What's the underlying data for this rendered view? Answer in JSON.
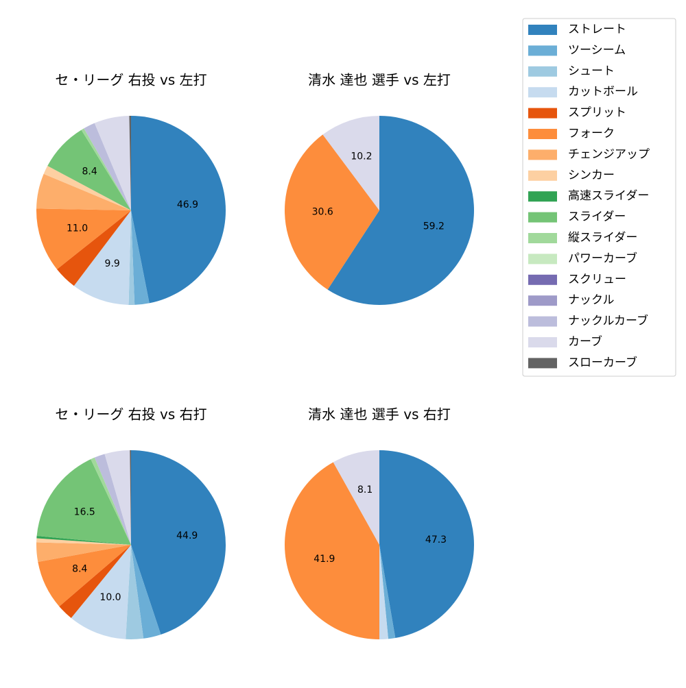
{
  "legend": {
    "labels": [
      "ストレート",
      "ツーシーム",
      "シュート",
      "カットボール",
      "スプリット",
      "フォーク",
      "チェンジアップ",
      "シンカー",
      "高速スライダー",
      "スライダー",
      "縦スライダー",
      "パワーカーブ",
      "スクリュー",
      "ナックル",
      "ナックルカーブ",
      "カーブ",
      "スローカーブ"
    ],
    "colors": [
      "#3182bd",
      "#6baed6",
      "#9ecae1",
      "#c6dbef",
      "#e6550d",
      "#fd8d3c",
      "#fdae6b",
      "#fdd0a2",
      "#31a354",
      "#74c476",
      "#a1d99b",
      "#c7e9c0",
      "#756bb1",
      "#9e9ac8",
      "#bcbddc",
      "#dadaeb",
      "#636363"
    ]
  },
  "chart_data": [
    {
      "type": "pie",
      "title": "セ・リーグ 右投 vs 左打",
      "values": [
        46.9,
        2.5,
        1.0,
        9.9,
        4.0,
        11.0,
        6.0,
        1.5,
        0,
        8.4,
        0.5,
        0,
        0,
        0,
        2.0,
        6.0,
        0.3
      ],
      "value_labels": [
        "46.9",
        null,
        null,
        "9.9",
        null,
        "11.0",
        null,
        null,
        null,
        "8.4",
        null,
        null,
        null,
        null,
        null,
        null,
        null
      ]
    },
    {
      "type": "pie",
      "title": "清水 達也 選手 vs 左打",
      "values": [
        59.2,
        0,
        0,
        0,
        0,
        30.6,
        0,
        0,
        0,
        0,
        0,
        0,
        0,
        0,
        0,
        10.2,
        0
      ],
      "value_labels": [
        "59.2",
        null,
        null,
        null,
        null,
        "30.6",
        null,
        null,
        null,
        null,
        null,
        null,
        null,
        null,
        null,
        "10.2",
        null
      ]
    },
    {
      "type": "pie",
      "title": "セ・リーグ 右投 vs 右打",
      "values": [
        44.9,
        3.0,
        3.0,
        10.0,
        2.8,
        8.4,
        3.3,
        0.7,
        0.4,
        16.5,
        0.7,
        0,
        0,
        0,
        1.8,
        4.3,
        0.2
      ],
      "value_labels": [
        "44.9",
        null,
        null,
        "10.0",
        null,
        "8.4",
        null,
        null,
        null,
        "16.5",
        null,
        null,
        null,
        null,
        null,
        null,
        null
      ]
    },
    {
      "type": "pie",
      "title": "清水 達也 選手 vs 右打",
      "values": [
        47.3,
        1.2,
        0,
        1.5,
        0,
        41.9,
        0,
        0,
        0,
        0,
        0,
        0,
        0,
        0,
        0,
        8.1,
        0
      ],
      "value_labels": [
        "47.3",
        null,
        null,
        null,
        null,
        "41.9",
        null,
        null,
        null,
        null,
        null,
        null,
        null,
        null,
        null,
        "8.1",
        null
      ]
    }
  ]
}
